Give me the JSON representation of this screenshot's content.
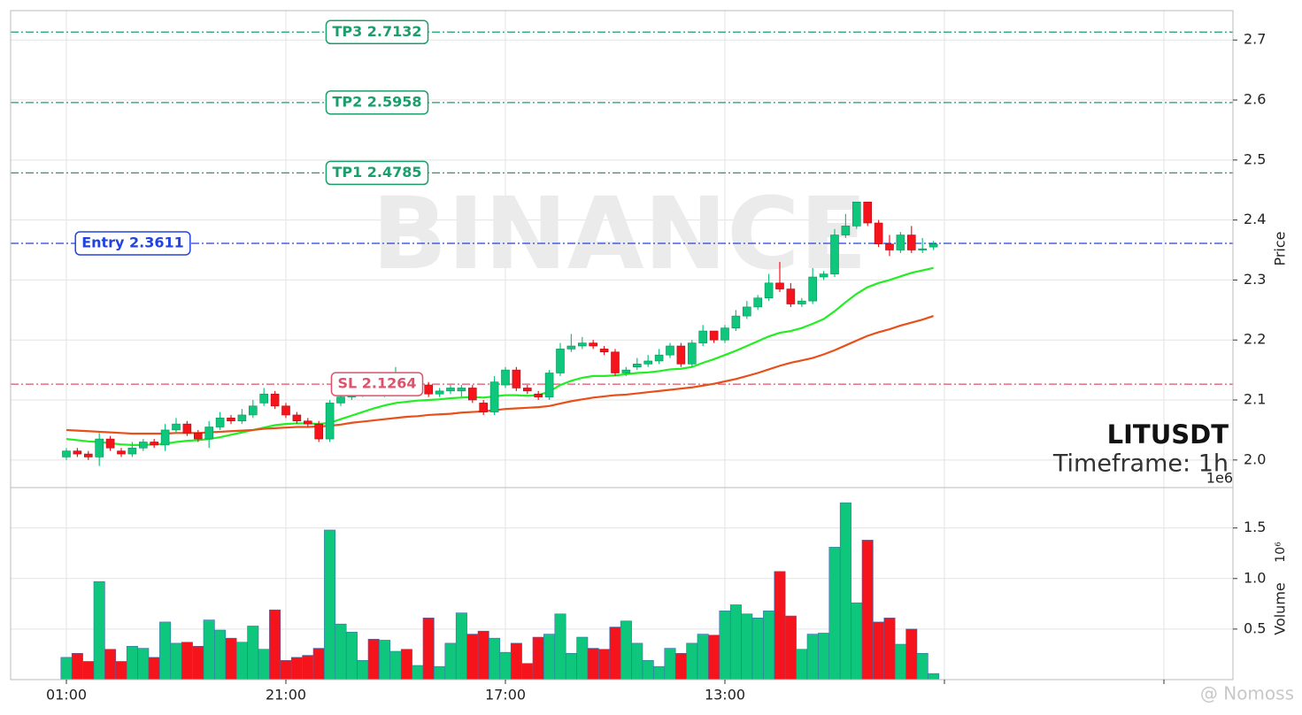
{
  "chart_data": {
    "type": "candlestick",
    "symbol": "LITUSDT",
    "timeframe": "Timeframe: 1h",
    "watermark": "BINANCE",
    "credit": "@ Nomoss",
    "ylabel": "Price",
    "volume_label": "Volume",
    "volume_unit": "10⁶",
    "volume_offset": "1e6",
    "x": [
      0,
      1,
      2,
      3,
      4,
      5,
      6,
      7,
      8,
      9,
      10,
      11,
      12,
      13,
      14,
      15,
      16,
      17,
      18,
      19,
      20,
      21,
      22,
      23,
      24,
      25,
      26,
      27,
      28,
      29,
      30,
      31,
      32,
      33,
      34,
      35,
      36,
      37,
      38,
      39,
      40,
      41,
      42,
      43,
      44,
      45,
      46,
      47,
      48,
      49,
      50,
      51,
      52,
      53,
      54,
      55,
      56,
      57,
      58,
      59,
      60,
      61,
      62,
      63,
      64,
      65,
      66,
      67,
      68,
      69,
      70,
      71,
      72,
      73,
      74,
      75,
      76,
      77,
      78,
      79
    ],
    "open": [
      2.005,
      2.015,
      2.01,
      2.005,
      2.035,
      2.015,
      2.01,
      2.02,
      2.03,
      2.025,
      2.05,
      2.06,
      2.045,
      2.035,
      2.055,
      2.07,
      2.065,
      2.075,
      2.095,
      2.11,
      2.09,
      2.075,
      2.065,
      2.06,
      2.035,
      2.095,
      2.105,
      2.11,
      2.12,
      2.11,
      2.12,
      2.13,
      2.12,
      2.125,
      2.11,
      2.115,
      2.115,
      2.12,
      2.095,
      2.08,
      2.125,
      2.15,
      2.12,
      2.11,
      2.105,
      2.145,
      2.185,
      2.19,
      2.195,
      2.185,
      2.18,
      2.145,
      2.155,
      2.16,
      2.165,
      2.175,
      2.19,
      2.16,
      2.195,
      2.215,
      2.2,
      2.22,
      2.24,
      2.255,
      2.27,
      2.295,
      2.285,
      2.26,
      2.265,
      2.305,
      2.31,
      2.375,
      2.39,
      2.43,
      2.395,
      2.36,
      2.35,
      2.375,
      2.35,
      2.355
    ],
    "high": [
      2.02,
      2.02,
      2.015,
      2.045,
      2.04,
      2.02,
      2.03,
      2.035,
      2.035,
      2.06,
      2.07,
      2.065,
      2.05,
      2.065,
      2.08,
      2.075,
      2.085,
      2.1,
      2.12,
      2.115,
      2.095,
      2.08,
      2.07,
      2.065,
      2.1,
      2.11,
      2.12,
      2.125,
      2.125,
      2.13,
      2.155,
      2.135,
      2.13,
      2.13,
      2.12,
      2.125,
      2.125,
      2.125,
      2.1,
      2.14,
      2.155,
      2.155,
      2.125,
      2.115,
      2.15,
      2.195,
      2.21,
      2.205,
      2.2,
      2.19,
      2.185,
      2.155,
      2.17,
      2.175,
      2.185,
      2.195,
      2.195,
      2.2,
      2.225,
      2.215,
      2.225,
      2.25,
      2.265,
      2.275,
      2.31,
      2.33,
      2.295,
      2.27,
      2.32,
      2.315,
      2.385,
      2.41,
      2.43,
      2.43,
      2.4,
      2.375,
      2.38,
      2.39,
      2.37,
      2.365
    ],
    "low": [
      2.0,
      2.005,
      2.0,
      1.99,
      2.015,
      2.005,
      2.005,
      2.015,
      2.02,
      2.015,
      2.045,
      2.04,
      2.03,
      2.02,
      2.05,
      2.06,
      2.06,
      2.07,
      2.09,
      2.085,
      2.07,
      2.06,
      2.055,
      2.03,
      2.03,
      2.09,
      2.1,
      2.105,
      2.11,
      2.105,
      2.115,
      2.12,
      2.115,
      2.105,
      2.105,
      2.11,
      2.105,
      2.095,
      2.075,
      2.075,
      2.12,
      2.115,
      2.11,
      2.1,
      2.1,
      2.14,
      2.18,
      2.185,
      2.185,
      2.175,
      2.14,
      2.14,
      2.15,
      2.155,
      2.16,
      2.17,
      2.155,
      2.155,
      2.19,
      2.195,
      2.195,
      2.215,
      2.235,
      2.25,
      2.265,
      2.28,
      2.255,
      2.255,
      2.26,
      2.3,
      2.305,
      2.37,
      2.385,
      2.39,
      2.355,
      2.34,
      2.345,
      2.345,
      2.345,
      2.35
    ],
    "close": [
      2.015,
      2.01,
      2.005,
      2.035,
      2.02,
      2.01,
      2.02,
      2.03,
      2.025,
      2.05,
      2.06,
      2.045,
      2.035,
      2.055,
      2.07,
      2.065,
      2.075,
      2.09,
      2.11,
      2.09,
      2.075,
      2.065,
      2.06,
      2.035,
      2.095,
      2.105,
      2.11,
      2.115,
      2.115,
      2.125,
      2.135,
      2.125,
      2.125,
      2.11,
      2.115,
      2.12,
      2.12,
      2.1,
      2.08,
      2.13,
      2.15,
      2.12,
      2.115,
      2.105,
      2.145,
      2.185,
      2.19,
      2.195,
      2.19,
      2.18,
      2.145,
      2.15,
      2.16,
      2.165,
      2.175,
      2.19,
      2.16,
      2.195,
      2.215,
      2.2,
      2.22,
      2.24,
      2.255,
      2.27,
      2.295,
      2.285,
      2.26,
      2.265,
      2.305,
      2.31,
      2.375,
      2.39,
      2.43,
      2.395,
      2.36,
      2.35,
      2.375,
      2.35,
      2.352,
      2.36
    ],
    "volume": [
      0.22,
      0.26,
      0.18,
      0.97,
      0.3,
      0.18,
      0.33,
      0.31,
      0.22,
      0.57,
      0.36,
      0.37,
      0.33,
      0.59,
      0.49,
      0.41,
      0.37,
      0.53,
      0.3,
      0.69,
      0.19,
      0.22,
      0.24,
      0.31,
      1.48,
      0.55,
      0.47,
      0.19,
      0.4,
      0.39,
      0.28,
      0.3,
      0.14,
      0.61,
      0.13,
      0.36,
      0.66,
      0.45,
      0.48,
      0.41,
      0.27,
      0.36,
      0.16,
      0.42,
      0.45,
      0.65,
      0.26,
      0.42,
      0.31,
      0.3,
      0.52,
      0.58,
      0.36,
      0.19,
      0.13,
      0.31,
      0.26,
      0.36,
      0.45,
      0.44,
      0.68,
      0.74,
      0.65,
      0.61,
      0.68,
      1.07,
      0.63,
      0.3,
      0.45,
      0.46,
      1.31,
      1.75,
      0.76,
      1.38,
      0.57,
      0.61,
      0.35,
      0.5,
      0.26,
      0.06
    ],
    "up_color": "#0ec77c",
    "down_color": "#f5131c",
    "moving_averages": [
      {
        "color": "#22ee22",
        "values": [
          2.035,
          2.033,
          2.031,
          2.03,
          2.028,
          2.026,
          2.025,
          2.025,
          2.026,
          2.027,
          2.03,
          2.032,
          2.033,
          2.035,
          2.038,
          2.042,
          2.046,
          2.05,
          2.054,
          2.058,
          2.06,
          2.061,
          2.061,
          2.06,
          2.062,
          2.068,
          2.074,
          2.08,
          2.086,
          2.091,
          2.095,
          2.097,
          2.099,
          2.1,
          2.101,
          2.103,
          2.104,
          2.105,
          2.104,
          2.106,
          2.108,
          2.108,
          2.107,
          2.108,
          2.114,
          2.125,
          2.132,
          2.137,
          2.14,
          2.14,
          2.141,
          2.143,
          2.145,
          2.146,
          2.148,
          2.151,
          2.152,
          2.155,
          2.162,
          2.168,
          2.175,
          2.182,
          2.19,
          2.198,
          2.206,
          2.212,
          2.215,
          2.22,
          2.227,
          2.235,
          2.248,
          2.263,
          2.277,
          2.288,
          2.295,
          2.3,
          2.306,
          2.312,
          2.316,
          2.32
        ]
      },
      {
        "color": "#e8501a",
        "values": [
          2.05,
          2.049,
          2.048,
          2.047,
          2.046,
          2.045,
          2.044,
          2.044,
          2.044,
          2.044,
          2.045,
          2.045,
          2.045,
          2.046,
          2.047,
          2.048,
          2.049,
          2.05,
          2.052,
          2.053,
          2.054,
          2.055,
          2.055,
          2.056,
          2.057,
          2.059,
          2.062,
          2.064,
          2.066,
          2.068,
          2.07,
          2.072,
          2.073,
          2.075,
          2.076,
          2.077,
          2.079,
          2.08,
          2.081,
          2.083,
          2.085,
          2.086,
          2.087,
          2.088,
          2.09,
          2.094,
          2.098,
          2.101,
          2.104,
          2.106,
          2.108,
          2.109,
          2.111,
          2.113,
          2.115,
          2.117,
          2.119,
          2.121,
          2.124,
          2.127,
          2.131,
          2.135,
          2.14,
          2.145,
          2.151,
          2.157,
          2.162,
          2.166,
          2.17,
          2.176,
          2.183,
          2.191,
          2.199,
          2.207,
          2.213,
          2.218,
          2.224,
          2.229,
          2.234,
          2.24
        ]
      }
    ],
    "levels": [
      {
        "label": "TP3 2.7132",
        "value": 2.7132,
        "color": "#1a9e6a"
      },
      {
        "label": "TP2 2.5958",
        "value": 2.5958,
        "color": "#1a9e6a"
      },
      {
        "label": "TP1 2.4785",
        "value": 2.4785,
        "color": "#1a9e6a"
      },
      {
        "label": "Entry 2.3611",
        "value": 2.3611,
        "color": "#2244dd"
      },
      {
        "label": "SL 2.1264",
        "value": 2.1264,
        "color": "#e0506a"
      }
    ],
    "xlim": [
      -5.08,
      106.29
    ],
    "xticks": [
      {
        "value": 0,
        "label": "01:00"
      },
      {
        "value": 20,
        "label": "21:00"
      },
      {
        "value": 40,
        "label": "17:00"
      },
      {
        "value": 60,
        "label": "13:00"
      },
      {
        "value": 80,
        "label": null
      },
      {
        "value": 100,
        "label": null
      }
    ],
    "ylim": [
      1.954,
      2.749
    ],
    "yticks": [
      {
        "value": 2,
        "label": "2.0"
      },
      2.1,
      2.2,
      2.3,
      2.4,
      2.5,
      2.6,
      2.7
    ],
    "volume_ylim": [
      0,
      1.9
    ],
    "volume_yticks": [
      0.5,
      {
        "value": 1,
        "label": "1.0"
      },
      1.5
    ],
    "grid": true
  }
}
